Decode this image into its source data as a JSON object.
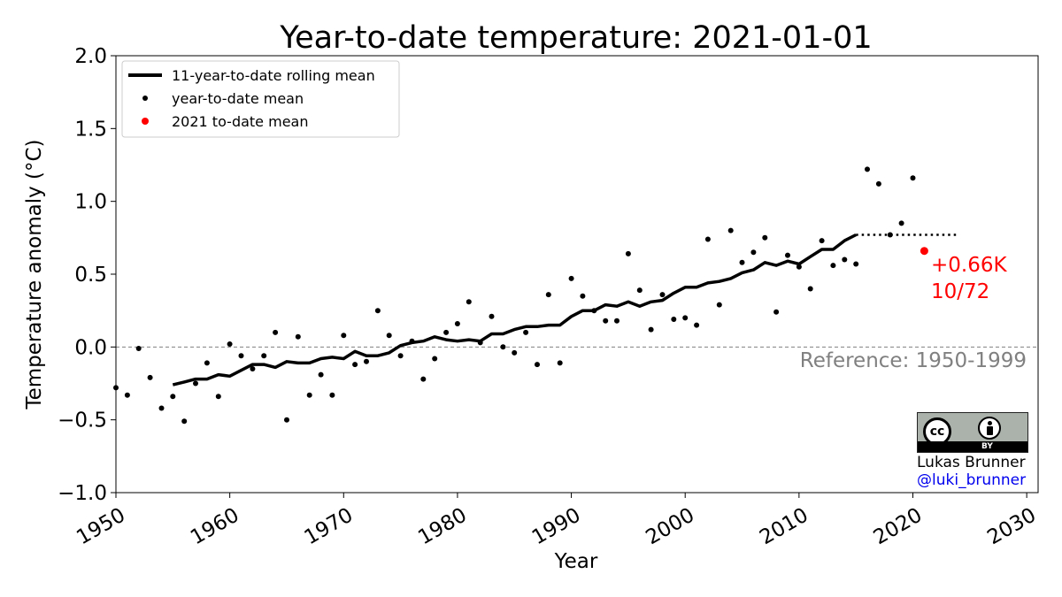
{
  "chart_data": {
    "type": "line",
    "title": "Year-to-date temperature: 2021-01-01",
    "xlabel": "Year",
    "ylabel": "Temperature anomaly (°C)",
    "xlim": [
      1950,
      2031
    ],
    "ylim": [
      -1.0,
      2.0
    ],
    "x_ticks": [
      "1950",
      "1960",
      "1970",
      "1980",
      "1990",
      "2000",
      "2010",
      "2020",
      "2030"
    ],
    "y_ticks": [
      "−1.0",
      "−0.5",
      "0.0",
      "0.5",
      "1.0",
      "1.5",
      "2.0"
    ],
    "grid": false,
    "legend_position": "top-left",
    "legend": [
      "11-year-to-date rolling mean",
      "year-to-date mean",
      "2021 to-date mean"
    ],
    "colors": {
      "rolling_mean": "#000000",
      "ytd_mean": "#000000",
      "current": "#ff0000",
      "reference_line": "#808080",
      "annotation": "#ff0000"
    },
    "series": [
      {
        "name": "11-year-to-date rolling mean",
        "style": "solid",
        "x": [
          1955,
          1956,
          1957,
          1958,
          1959,
          1960,
          1961,
          1962,
          1963,
          1964,
          1965,
          1966,
          1967,
          1968,
          1969,
          1970,
          1971,
          1972,
          1973,
          1974,
          1975,
          1976,
          1977,
          1978,
          1979,
          1980,
          1981,
          1982,
          1983,
          1984,
          1985,
          1986,
          1987,
          1988,
          1989,
          1990,
          1991,
          1992,
          1993,
          1994,
          1995,
          1996,
          1997,
          1998,
          1999,
          2000,
          2001,
          2002,
          2003,
          2004,
          2005,
          2006,
          2007,
          2008,
          2009,
          2010,
          2011,
          2012,
          2013,
          2014,
          2015
        ],
        "y": [
          -0.26,
          -0.24,
          -0.22,
          -0.22,
          -0.19,
          -0.2,
          -0.16,
          -0.12,
          -0.12,
          -0.14,
          -0.1,
          -0.11,
          -0.11,
          -0.08,
          -0.07,
          -0.08,
          -0.03,
          -0.06,
          -0.06,
          -0.04,
          0.01,
          0.03,
          0.04,
          0.07,
          0.05,
          0.04,
          0.05,
          0.04,
          0.09,
          0.09,
          0.12,
          0.14,
          0.14,
          0.15,
          0.15,
          0.21,
          0.25,
          0.25,
          0.29,
          0.28,
          0.31,
          0.28,
          0.31,
          0.32,
          0.37,
          0.41,
          0.41,
          0.44,
          0.45,
          0.47,
          0.51,
          0.53,
          0.58,
          0.56,
          0.59,
          0.57,
          0.62,
          0.67,
          0.67,
          0.73,
          0.77
        ]
      },
      {
        "name": "",
        "style": "dotted",
        "x": [
          2015,
          2024
        ],
        "y": [
          0.77,
          0.77
        ]
      },
      {
        "name": "year-to-date mean",
        "style": "points",
        "x": [
          1950,
          1951,
          1952,
          1953,
          1954,
          1955,
          1956,
          1957,
          1958,
          1959,
          1960,
          1961,
          1962,
          1963,
          1964,
          1965,
          1966,
          1967,
          1968,
          1969,
          1970,
          1971,
          1972,
          1973,
          1974,
          1975,
          1976,
          1977,
          1978,
          1979,
          1980,
          1981,
          1982,
          1983,
          1984,
          1985,
          1986,
          1987,
          1988,
          1989,
          1990,
          1991,
          1992,
          1993,
          1994,
          1995,
          1996,
          1997,
          1998,
          1999,
          2000,
          2001,
          2002,
          2003,
          2004,
          2005,
          2006,
          2007,
          2008,
          2009,
          2010,
          2011,
          2012,
          2013,
          2014,
          2015,
          2016,
          2017,
          2018,
          2019,
          2020
        ],
        "y": [
          -0.28,
          -0.33,
          -0.01,
          -0.21,
          -0.42,
          -0.34,
          -0.51,
          -0.25,
          -0.11,
          -0.34,
          0.02,
          -0.06,
          -0.15,
          -0.06,
          0.1,
          -0.5,
          0.07,
          -0.33,
          -0.19,
          -0.33,
          0.08,
          -0.12,
          -0.1,
          0.25,
          0.08,
          -0.06,
          0.04,
          -0.22,
          -0.08,
          0.1,
          0.16,
          0.31,
          0.03,
          0.21,
          0.0,
          -0.04,
          0.1,
          -0.12,
          0.36,
          -0.11,
          0.47,
          0.35,
          0.25,
          0.18,
          0.18,
          0.64,
          0.39,
          0.12,
          0.36,
          0.19,
          0.2,
          0.15,
          0.74,
          0.29,
          0.8,
          0.58,
          0.65,
          0.75,
          0.24,
          0.63,
          0.55,
          0.4,
          0.73,
          0.56,
          0.6,
          0.57,
          1.22,
          1.12,
          0.77,
          0.85,
          1.16
        ]
      },
      {
        "name": "2021 to-date mean",
        "style": "point",
        "x": [
          2021
        ],
        "y": [
          0.66
        ]
      }
    ],
    "reference_line": {
      "y": 0.0,
      "label": "Reference: 1950-1999"
    },
    "annotation": {
      "line1": "+0.66K",
      "line2": "10/72"
    }
  },
  "attribution": {
    "license": "BY",
    "cc_mark": "cc",
    "author": "Lukas Brunner",
    "handle": "@luki_brunner"
  }
}
